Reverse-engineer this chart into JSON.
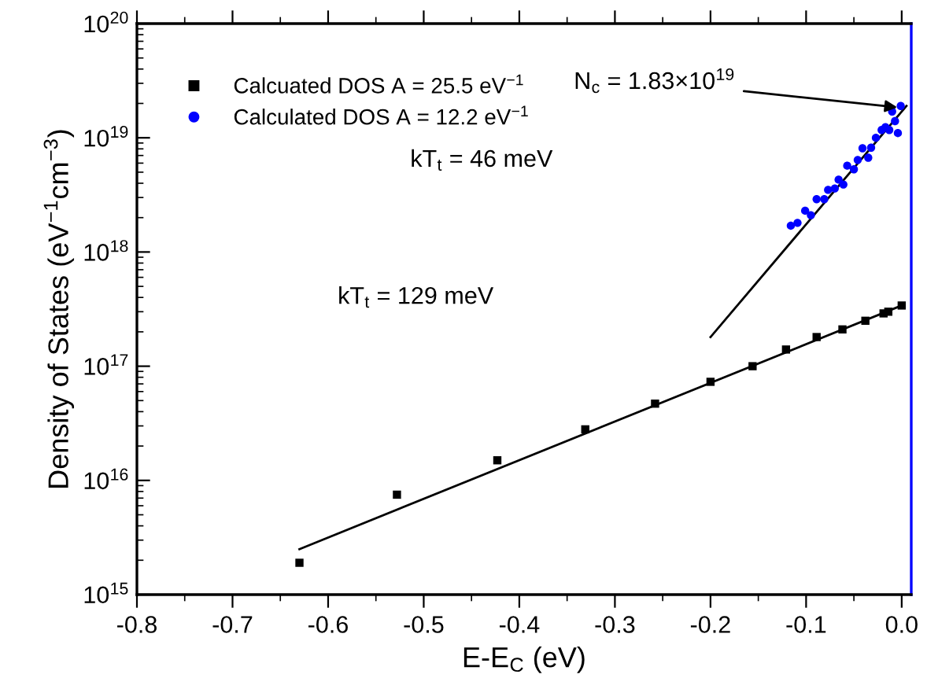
{
  "chart_data": {
    "type": "scatter",
    "xlabel": "E-E$_{C}$ (eV)",
    "ylabel": "Density of States (eV$^{−1}$cm$^{−3}$)",
    "log": "y",
    "xlim": [
      -0.8,
      0.01
    ],
    "xticks": [
      -0.8,
      -0.7,
      -0.6,
      -0.5,
      -0.4,
      -0.3,
      -0.2,
      -0.1,
      {
        "value": 0.0,
        "label": "0.0"
      }
    ],
    "ylim": [
      1000000000000000.0,
      1e+20
    ],
    "yticks": [
      {
        "value": 1000000000000000.0,
        "label": "10$^{15}$"
      },
      {
        "value": 1e+16,
        "label": "10$^{16}$"
      },
      {
        "value": 1e+17,
        "label": "10$^{17}$"
      },
      {
        "value": 1e+18,
        "label": "10$^{18}$"
      },
      {
        "value": 1e+19,
        "label": "10$^{19}$"
      },
      {
        "value": 1e+20,
        "label": "10$^{20}$"
      }
    ],
    "grid": false,
    "legend": "top left",
    "series": [
      {
        "name": "Calcuated DOS A = 25.5 eV$^{−1}$",
        "color": "#000000",
        "marker": "square",
        "x": [
          -0.63,
          -0.528,
          -0.423,
          -0.331,
          -0.258,
          -0.2,
          -0.156,
          -0.121,
          -0.089,
          -0.062,
          -0.038,
          -0.019,
          -0.014,
          0.0
        ],
        "values": [
          1900000000000000.0,
          7500000000000000.0,
          1.5e+16,
          2.8e+16,
          4.7e+16,
          7.3e+16,
          1e+17,
          1.4e+17,
          1.8e+17,
          2.1e+17,
          2.5e+17,
          2.9e+17,
          3e+17,
          3.4e+17
        ]
      },
      {
        "name": "Calculated DOS A = 12.2 eV$^{−1}$",
        "color": "#0000ff",
        "marker": "circle",
        "x": [
          -0.116,
          -0.109,
          -0.101,
          -0.095,
          -0.089,
          -0.081,
          -0.077,
          -0.07,
          -0.066,
          -0.061,
          -0.057,
          -0.05,
          -0.046,
          -0.041,
          -0.035,
          -0.032,
          -0.027,
          -0.021,
          -0.017,
          -0.013,
          -0.01,
          -0.007,
          -0.004,
          -0.001
        ],
        "values": [
          1.7e+18,
          1.8e+18,
          2.3e+18,
          2.1e+18,
          2.9e+18,
          2.9e+18,
          3.5e+18,
          3.6e+18,
          4.3e+18,
          3.9e+18,
          5.7e+18,
          5.3e+18,
          6.4e+18,
          8.1e+18,
          6.7e+18,
          8.2e+18,
          1e+19,
          1.17e+19,
          1.24e+19,
          1.17e+19,
          1.7e+19,
          1.4e+19,
          1.1e+19,
          1.9e+19
        ]
      },
      {
        "type": "line",
        "color": "#000000",
        "x": [
          -0.63,
          0.0
        ],
        "values": [
          2500000000000000.0,
          3.4e+17
        ]
      },
      {
        "type": "line",
        "color": "#000000",
        "x": [
          -0.2,
          0.005
        ],
        "values": [
          1.8e+17,
          1.9e+19
        ]
      }
    ],
    "annotations": [
      {
        "text": "N$_{c}$ = 1.83×10$^{19}$",
        "x": 0.0,
        "y": 1.83e+19
      },
      "kT$_{t}$ = 46 meV",
      "kT$_{t}$ = 129 meV"
    ]
  }
}
